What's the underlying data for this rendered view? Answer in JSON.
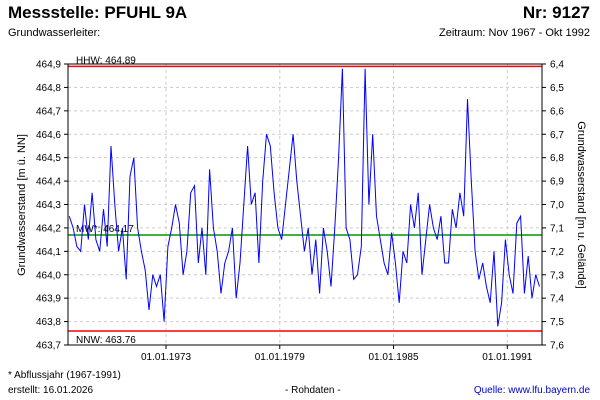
{
  "header": {
    "title_left": "Messstelle: PFUHL 9A",
    "title_right": "Nr: 9127",
    "aquifer_label": "Grundwasserleiter:",
    "period": "Zeitraum: Nov 1967 - Okt 1992"
  },
  "footer": {
    "note": "* Abflussjahr (1967-1991)",
    "created": "erstellt:  16.01.2026",
    "data_type": "- Rohdaten -",
    "source": "Quelle: www.lfu.bayern.de"
  },
  "chart_data": {
    "type": "line",
    "ylabel": "Grundwasserstand [m ü. NN]",
    "y2label": "Grundwasserstand [m u. Gelände]",
    "ylim": [
      463.7,
      464.9
    ],
    "y2lim": [
      6.4,
      7.6
    ],
    "yticks": [
      "463,7",
      "463,8",
      "463,9",
      "464,0",
      "464,1",
      "464,2",
      "464,3",
      "464,4",
      "464,5",
      "464,6",
      "464,7",
      "464,8",
      "464,9"
    ],
    "y2ticks": [
      "6,4",
      "6,5",
      "6,6",
      "6,7",
      "6,8",
      "6,9",
      "7,0",
      "7,1",
      "7,2",
      "7,3",
      "7,4",
      "7,5",
      "7,6"
    ],
    "xlim": [
      1967.83,
      1992.83
    ],
    "xticks": [
      {
        "value": 1973.0,
        "label": "01.01.1973"
      },
      {
        "value": 1979.0,
        "label": "01.01.1979"
      },
      {
        "value": 1985.0,
        "label": "01.01.1985"
      },
      {
        "value": 1991.0,
        "label": "01.01.1991"
      }
    ],
    "reference_lines": [
      {
        "label": "HHW: 464.89",
        "value": 464.89,
        "color": "#ff0000"
      },
      {
        "label": "MW*: 464.17",
        "value": 464.17,
        "color": "#009900"
      },
      {
        "label": "NNW: 463.76",
        "value": 463.76,
        "color": "#ff0000"
      }
    ],
    "grid": true,
    "series_color": "#0000ff",
    "series": [
      {
        "x": [
          1967.9,
          1968.1,
          1968.3,
          1968.5,
          1968.7,
          1968.9,
          1969.1,
          1969.3,
          1969.5,
          1969.7,
          1969.9,
          1970.1,
          1970.3,
          1970.5,
          1970.7,
          1970.9,
          1971.1,
          1971.3,
          1971.5,
          1971.7,
          1971.9,
          1972.1,
          1972.3,
          1972.5,
          1972.7,
          1972.9,
          1973.1,
          1973.3,
          1973.5,
          1973.7,
          1973.9,
          1974.1,
          1974.3,
          1974.5,
          1974.7,
          1974.9,
          1975.1,
          1975.3,
          1975.5,
          1975.7,
          1975.9,
          1976.1,
          1976.3,
          1976.5,
          1976.7,
          1976.9,
          1977.1,
          1977.3,
          1977.5,
          1977.7,
          1977.9,
          1978.1,
          1978.3,
          1978.5,
          1978.7,
          1978.9,
          1979.1,
          1979.3,
          1979.5,
          1979.7,
          1979.9,
          1980.1,
          1980.3,
          1980.5,
          1980.7,
          1980.9,
          1981.1,
          1981.3,
          1981.5,
          1981.7,
          1981.9,
          1982.1,
          1982.3,
          1982.5,
          1982.7,
          1982.9,
          1983.1,
          1983.3,
          1983.5,
          1983.7,
          1983.9,
          1984.1,
          1984.3,
          1984.5,
          1984.7,
          1984.9,
          1985.1,
          1985.3,
          1985.5,
          1985.7,
          1985.9,
          1986.1,
          1986.3,
          1986.5,
          1986.7,
          1986.9,
          1987.1,
          1987.3,
          1987.5,
          1987.7,
          1987.9,
          1988.1,
          1988.3,
          1988.5,
          1988.7,
          1988.9,
          1989.1,
          1989.3,
          1989.5,
          1989.7,
          1989.9,
          1990.1,
          1990.3,
          1990.5,
          1990.7,
          1990.9,
          1991.1,
          1991.3,
          1991.5,
          1991.7,
          1991.9,
          1992.1,
          1992.3,
          1992.5,
          1992.7
        ],
        "y": [
          464.25,
          464.2,
          464.12,
          464.1,
          464.3,
          464.15,
          464.35,
          464.15,
          464.1,
          464.28,
          464.12,
          464.55,
          464.3,
          464.1,
          464.2,
          463.98,
          464.42,
          464.5,
          464.2,
          464.1,
          464.02,
          463.85,
          464.0,
          463.95,
          464.0,
          463.8,
          464.12,
          464.2,
          464.3,
          464.22,
          464.0,
          464.1,
          464.35,
          464.38,
          464.05,
          464.2,
          464.0,
          464.45,
          464.2,
          464.1,
          463.92,
          464.05,
          464.1,
          464.2,
          463.9,
          464.05,
          464.3,
          464.55,
          464.3,
          464.35,
          464.05,
          464.4,
          464.6,
          464.55,
          464.35,
          464.2,
          464.15,
          464.3,
          464.45,
          464.6,
          464.4,
          464.25,
          464.1,
          464.2,
          464.0,
          464.15,
          463.92,
          464.2,
          464.1,
          463.95,
          464.2,
          464.5,
          464.88,
          464.2,
          464.15,
          463.98,
          464.0,
          464.12,
          464.88,
          464.3,
          464.6,
          464.25,
          464.15,
          464.05,
          464.0,
          464.18,
          464.05,
          463.88,
          464.1,
          464.05,
          464.3,
          464.2,
          464.35,
          464.0,
          464.15,
          464.3,
          464.2,
          464.15,
          464.25,
          464.05,
          464.05,
          464.28,
          464.2,
          464.35,
          464.25,
          464.75,
          464.4,
          464.1,
          463.98,
          464.05,
          463.95,
          463.88,
          464.1,
          463.78,
          463.88,
          464.15,
          464.0,
          463.92,
          464.22,
          464.25,
          463.92,
          464.08,
          463.9,
          464.0,
          463.95
        ]
      }
    ]
  }
}
